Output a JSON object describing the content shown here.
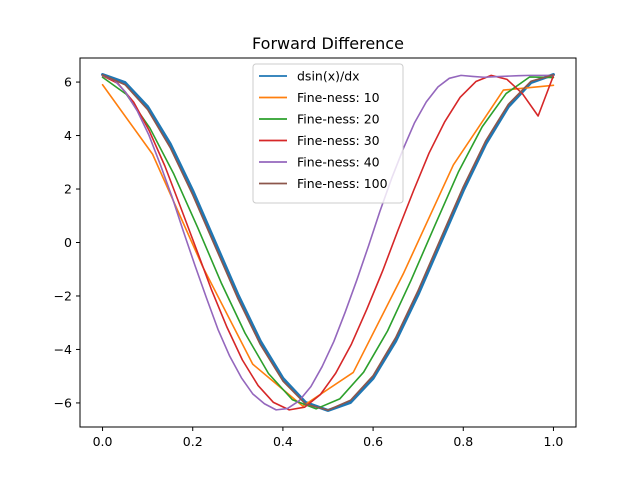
{
  "chart_data": {
    "type": "line",
    "title": "Forward Difference",
    "xlabel": "",
    "ylabel": "",
    "xlim": [
      -0.05,
      1.05
    ],
    "ylim": [
      -6.9,
      6.9
    ],
    "x_ticks": [
      0.0,
      0.2,
      0.4,
      0.6,
      0.8,
      1.0
    ],
    "x_tick_labels": [
      "0.0",
      "0.2",
      "0.4",
      "0.6",
      "0.8",
      "1.0"
    ],
    "y_ticks": [
      -6,
      -4,
      -2,
      0,
      2,
      4,
      6
    ],
    "y_tick_labels": [
      "−6",
      "−4",
      "−2",
      "0",
      "2",
      "4",
      "6"
    ],
    "grid": false,
    "legend_position": "top-center",
    "series": [
      {
        "name": "dsin(x)/dx",
        "color": "#1f77b4",
        "x": [
          0.0,
          0.05,
          0.1,
          0.15,
          0.2,
          0.25,
          0.3,
          0.35,
          0.4,
          0.45,
          0.5,
          0.55,
          0.6,
          0.65,
          0.7,
          0.75,
          0.8,
          0.85,
          0.9,
          0.95,
          1.0
        ],
        "y": [
          6.28,
          5.98,
          5.08,
          3.69,
          1.94,
          0.0,
          -1.94,
          -3.69,
          -5.08,
          -5.98,
          -6.28,
          -5.98,
          -5.08,
          -3.69,
          -1.94,
          0.0,
          1.94,
          3.69,
          5.08,
          5.98,
          6.28
        ]
      },
      {
        "name": "Fine-ness: 10",
        "color": "#ff7f0e",
        "x": [
          0.0,
          0.111,
          0.222,
          0.333,
          0.444,
          0.556,
          0.667,
          0.778,
          0.889,
          1.0
        ],
        "y": [
          5.9,
          3.3,
          -0.9,
          -4.55,
          -6.12,
          -4.86,
          -1.17,
          2.9,
          5.7,
          5.88
        ]
      },
      {
        "name": "Fine-ness: 20",
        "color": "#2ca02c",
        "x": [
          0.0,
          0.053,
          0.105,
          0.158,
          0.211,
          0.263,
          0.316,
          0.368,
          0.421,
          0.474,
          0.526,
          0.579,
          0.632,
          0.684,
          0.737,
          0.789,
          0.842,
          0.895,
          0.947,
          1.0
        ],
        "y": [
          6.18,
          5.54,
          4.28,
          2.56,
          0.56,
          -1.5,
          -3.39,
          -4.9,
          -5.88,
          -6.22,
          -5.85,
          -4.85,
          -3.31,
          -1.42,
          0.64,
          2.63,
          4.33,
          5.57,
          6.19,
          6.17
        ]
      },
      {
        "name": "Fine-ness: 30",
        "color": "#d62728",
        "x": [
          0.0,
          0.034,
          0.069,
          0.103,
          0.138,
          0.172,
          0.207,
          0.241,
          0.276,
          0.31,
          0.345,
          0.379,
          0.414,
          0.448,
          0.483,
          0.517,
          0.552,
          0.586,
          0.621,
          0.655,
          0.69,
          0.724,
          0.759,
          0.793,
          0.828,
          0.862,
          0.897,
          0.931,
          0.966,
          1.0
        ],
        "y": [
          6.24,
          5.95,
          5.25,
          4.2,
          2.87,
          1.37,
          -0.2,
          -1.74,
          -3.17,
          -4.39,
          -5.35,
          -5.98,
          -6.26,
          -6.16,
          -5.69,
          -4.89,
          -3.8,
          -2.5,
          -1.07,
          0.45,
          1.95,
          3.34,
          4.52,
          5.43,
          6.02,
          6.25,
          6.1,
          5.57,
          4.73,
          6.24
        ]
      },
      {
        "name": "Fine-ness: 40",
        "color": "#9467bd",
        "x": [
          0.0,
          0.026,
          0.051,
          0.077,
          0.103,
          0.128,
          0.154,
          0.179,
          0.205,
          0.231,
          0.256,
          0.282,
          0.308,
          0.333,
          0.359,
          0.385,
          0.41,
          0.436,
          0.462,
          0.487,
          0.513,
          0.538,
          0.564,
          0.59,
          0.615,
          0.641,
          0.667,
          0.692,
          0.718,
          0.744,
          0.769,
          0.795,
          0.821,
          0.846,
          0.872,
          0.897,
          0.923,
          0.949,
          0.974,
          1.0
        ],
        "y": [
          6.25,
          6.07,
          5.62,
          4.92,
          4.01,
          2.92,
          1.71,
          0.43,
          -0.86,
          -2.1,
          -3.25,
          -4.25,
          -5.06,
          -5.66,
          -6.03,
          -6.26,
          -6.21,
          -5.92,
          -5.39,
          -4.64,
          -3.7,
          -2.61,
          -1.4,
          -0.12,
          1.16,
          2.39,
          3.51,
          4.48,
          5.26,
          5.82,
          6.14,
          6.25,
          6.21,
          6.18,
          6.2,
          6.22,
          6.24,
          6.25,
          6.25,
          6.25
        ]
      },
      {
        "name": "Fine-ness: 100",
        "color": "#8c564b",
        "x": [
          0.0,
          0.05,
          0.1,
          0.15,
          0.2,
          0.25,
          0.3,
          0.35,
          0.4,
          0.45,
          0.5,
          0.55,
          0.6,
          0.65,
          0.7,
          0.75,
          0.8,
          0.85,
          0.9,
          0.95,
          1.0
        ],
        "y": [
          6.27,
          5.9,
          4.97,
          3.55,
          1.78,
          -0.16,
          -2.09,
          -3.82,
          -5.18,
          -6.04,
          -6.27,
          -5.9,
          -4.98,
          -3.56,
          -1.79,
          0.15,
          2.08,
          3.81,
          5.17,
          6.03,
          6.27
        ]
      }
    ]
  }
}
